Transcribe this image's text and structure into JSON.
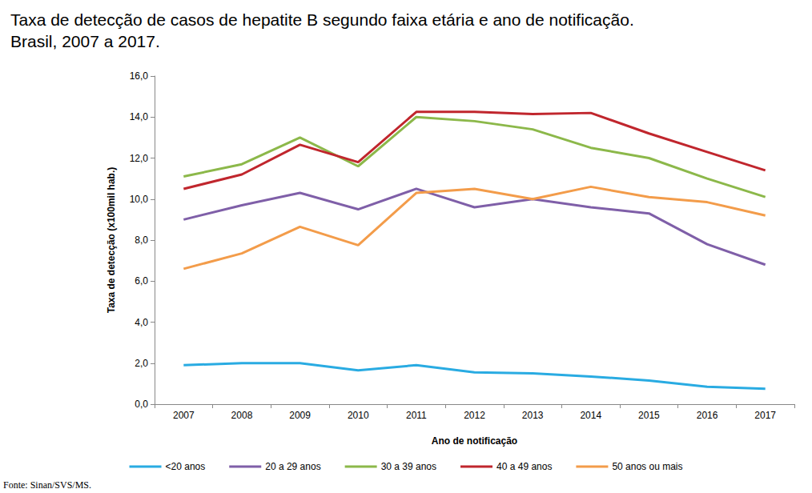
{
  "chart_data": {
    "type": "line",
    "title": "Taxa de detecção de casos de hepatite B segundo faixa etária e ano de notificação. Brasil, 2007 a 2017.",
    "x_label": "Ano de notificação",
    "y_label": "Taxa de detecção (x100mil hab.)",
    "source": "Fonte: Sinan/SVS/MS.",
    "categories": [
      "2007",
      "2008",
      "2009",
      "2010",
      "2011",
      "2012",
      "2013",
      "2014",
      "2015",
      "2016",
      "2017"
    ],
    "series": [
      {
        "name": "<20 anos",
        "color": "#29abe2",
        "values": [
          1.9,
          2.0,
          2.0,
          1.65,
          1.9,
          1.55,
          1.5,
          1.35,
          1.15,
          0.85,
          0.75
        ]
      },
      {
        "name": "20 a 29 anos",
        "color": "#7f5fa8",
        "values": [
          9.0,
          9.7,
          10.3,
          9.5,
          10.5,
          9.6,
          10.0,
          9.6,
          9.3,
          7.8,
          6.8
        ]
      },
      {
        "name": "30 a 39 anos",
        "color": "#8cb84a",
        "values": [
          11.1,
          11.7,
          13.0,
          11.6,
          14.0,
          13.8,
          13.4,
          12.5,
          12.0,
          11.0,
          10.1
        ]
      },
      {
        "name": "40 a 49 anos",
        "color": "#c0262d",
        "values": [
          10.5,
          11.2,
          12.65,
          11.8,
          14.25,
          14.25,
          14.15,
          14.2,
          13.2,
          12.3,
          11.4
        ]
      },
      {
        "name": "50 anos ou mais",
        "color": "#f39c4a",
        "values": [
          6.6,
          7.35,
          8.65,
          7.75,
          10.3,
          10.5,
          10.0,
          10.6,
          10.1,
          9.85,
          9.2
        ]
      }
    ],
    "ylim": [
      0,
      16
    ],
    "yticks": [
      {
        "value": 0,
        "label": "0,0"
      },
      {
        "value": 2,
        "label": "2,0"
      },
      {
        "value": 4,
        "label": "4,0"
      },
      {
        "value": 6,
        "label": "6,0"
      },
      {
        "value": 8,
        "label": "8,0"
      },
      {
        "value": 10,
        "label": "10,0"
      },
      {
        "value": 12,
        "label": "12,0"
      },
      {
        "value": 14,
        "label": "14,0"
      },
      {
        "value": 16,
        "label": "16,0"
      }
    ],
    "grid": false,
    "legend": "bottom"
  }
}
